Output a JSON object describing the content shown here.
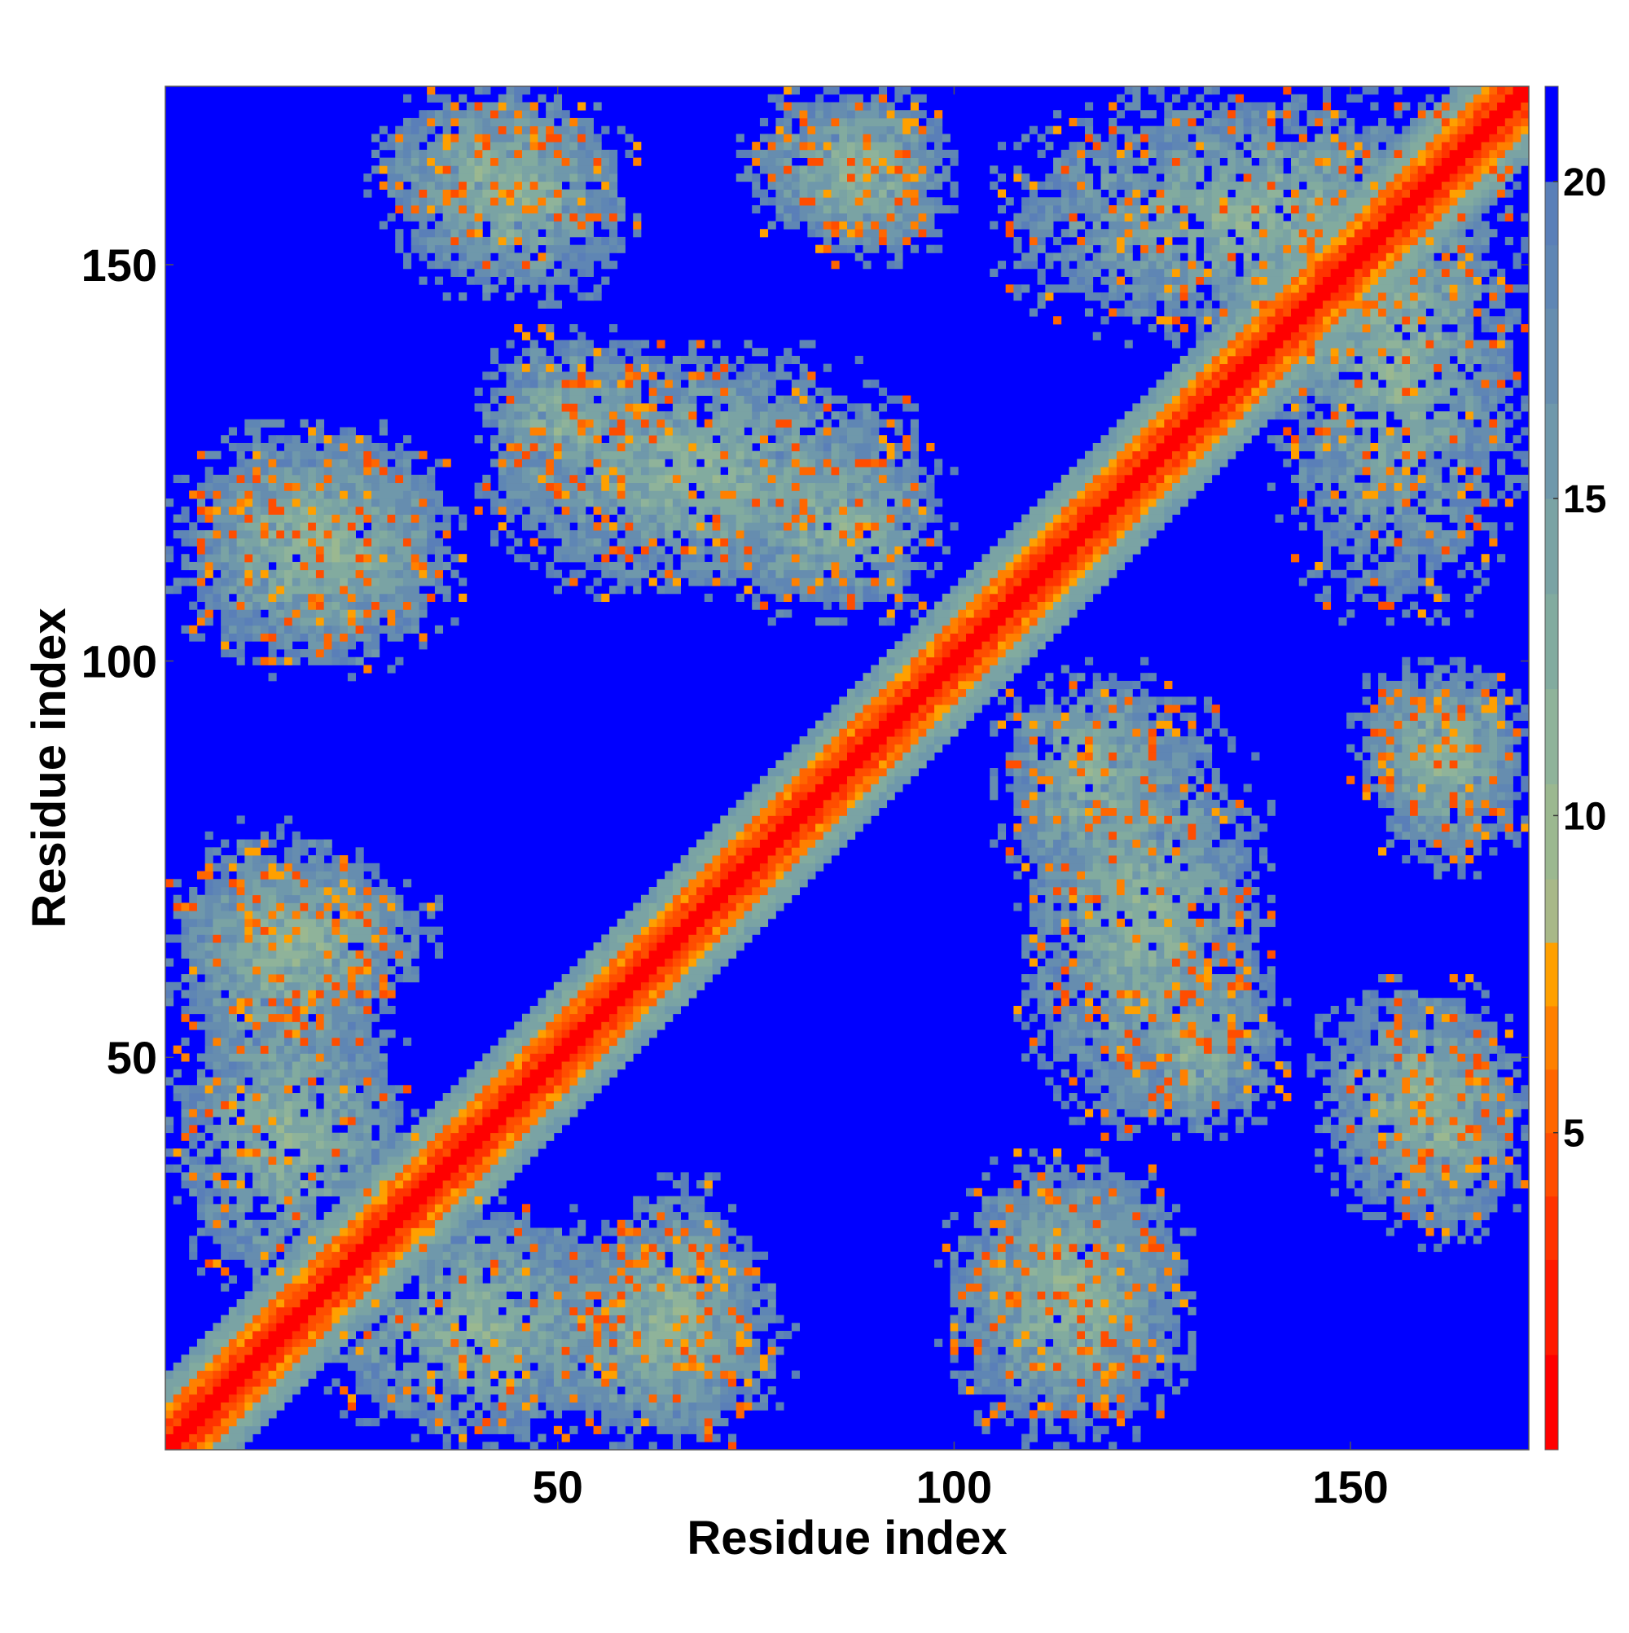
{
  "chart_data": {
    "type": "heatmap",
    "title": "",
    "xlabel": "Residue index",
    "ylabel": "Residue index",
    "n_residues": 172,
    "xlim": [
      0.5,
      172.5
    ],
    "ylim": [
      0.5,
      172.5
    ],
    "x_ticks": [
      50,
      100,
      150
    ],
    "y_ticks": [
      50,
      100,
      150
    ],
    "x_tick_labels": [
      "50",
      "100",
      "150"
    ],
    "y_tick_labels": [
      "50",
      "100",
      "150"
    ],
    "colorbar": {
      "vmin": 0,
      "vmax": 21.5,
      "ticks": [
        5,
        10,
        15,
        20
      ],
      "tick_labels": [
        "5",
        "10",
        "15",
        "20"
      ],
      "levels": [
        {
          "upper": 1.5,
          "color": "#ff0000"
        },
        {
          "upper": 3.0,
          "color": "#ff1a00"
        },
        {
          "upper": 4.0,
          "color": "#ff3300"
        },
        {
          "upper": 5.0,
          "color": "#ff4d00"
        },
        {
          "upper": 6.0,
          "color": "#ff6600"
        },
        {
          "upper": 7.0,
          "color": "#ff8000"
        },
        {
          "upper": 8.0,
          "color": "#ffa000"
        },
        {
          "upper": 9.0,
          "color": "#a8b888"
        },
        {
          "upper": 10.5,
          "color": "#9bb890"
        },
        {
          "upper": 12.0,
          "color": "#8fb39a"
        },
        {
          "upper": 13.5,
          "color": "#82ab9f"
        },
        {
          "upper": 15.0,
          "color": "#7aa3a4"
        },
        {
          "upper": 16.5,
          "color": "#6f98ab"
        },
        {
          "upper": 18.0,
          "color": "#668daf"
        },
        {
          "upper": 19.0,
          "color": "#5f86b4"
        },
        {
          "upper": 20.0,
          "color": "#5a7fb8"
        },
        {
          "upper": 999,
          "color": "#0000ff"
        }
      ]
    },
    "background_color": "#0000ff",
    "description_of_values": "Symmetric residue-residue distance map (Angstrom); diagonal band near 0 (red), blue indicates values above 20",
    "contact_regions": [
      {
        "a": [
          1,
          45
        ],
        "b": [
          1,
          45
        ],
        "kind": "diagonal"
      },
      {
        "a": [
          20,
          60
        ],
        "b": [
          1,
          32
        ],
        "kind": "offdiag"
      },
      {
        "a": [
          45,
          80
        ],
        "b": [
          1,
          30
        ],
        "kind": "offdiag"
      },
      {
        "a": [
          1,
          35
        ],
        "b": [
          55,
          75
        ],
        "kind": "offdiag"
      },
      {
        "a": [
          5,
          38
        ],
        "b": [
          98,
          130
        ],
        "kind": "offdiag"
      },
      {
        "a": [
          40,
          62
        ],
        "b": [
          118,
          142
        ],
        "kind": "offdiag"
      },
      {
        "a": [
          70,
          100
        ],
        "b": [
          105,
          130
        ],
        "kind": "offdiag"
      },
      {
        "a": [
          100,
          130
        ],
        "b": [
          1,
          35
        ],
        "kind": "offdiag"
      },
      {
        "a": [
          108,
          140
        ],
        "b": [
          40,
          95
        ],
        "kind": "offdiag"
      },
      {
        "a": [
          150,
          172
        ],
        "b": [
          80,
          100
        ],
        "kind": "offdiag"
      },
      {
        "a": [
          145,
          172
        ],
        "b": [
          30,
          60
        ],
        "kind": "offdiag"
      },
      {
        "a": [
          26,
          55
        ],
        "b": [
          152,
          172
        ],
        "kind": "offdiag"
      },
      {
        "a": [
          73,
          100
        ],
        "b": [
          152,
          172
        ],
        "kind": "offdiag"
      },
      {
        "a": [
          105,
          172
        ],
        "b": [
          140,
          172
        ],
        "kind": "offdiag"
      }
    ]
  }
}
